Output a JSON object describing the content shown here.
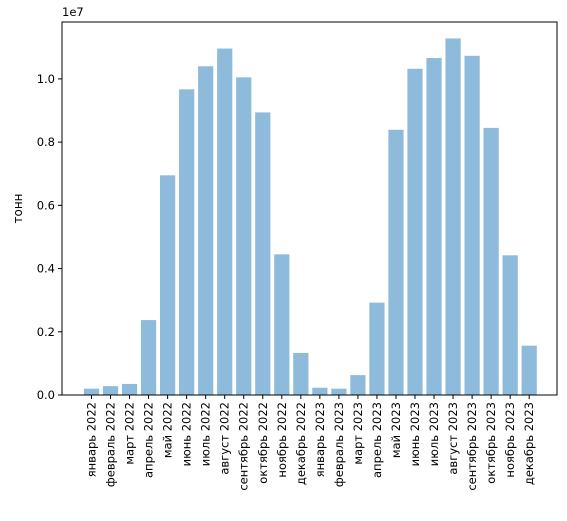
{
  "chart_data": {
    "type": "bar",
    "title": "",
    "xlabel": "",
    "ylabel": "тонн",
    "offset_text": "1e7",
    "ylim": [
      0,
      11800000
    ],
    "yticks": [
      0,
      2000000,
      4000000,
      6000000,
      8000000,
      10000000
    ],
    "ytick_labels": [
      "0.0",
      "0.2",
      "0.4",
      "0.6",
      "0.8",
      "1.0"
    ],
    "bar_color": "#8ebbdb",
    "categories": [
      "январь 2022",
      "февраль 2022",
      "март 2022",
      "апрель 2022",
      "май 2022",
      "июнь 2022",
      "июль 2022",
      "август 2022",
      "сентябрь 2022",
      "октябрь 2022",
      "ноябрь 2022",
      "декабрь 2022",
      "январь 2023",
      "февраль 2023",
      "март 2023",
      "апрель 2023",
      "май 2023",
      "июнь 2023",
      "июль 2023",
      "август 2023",
      "сентябрь 2023",
      "октябрь 2023",
      "ноябрь 2023",
      "декабрь 2023"
    ],
    "values": [
      200000,
      280000,
      350000,
      2370000,
      6950000,
      9670000,
      10400000,
      10960000,
      10050000,
      8940000,
      4450000,
      1330000,
      230000,
      200000,
      630000,
      2920000,
      8390000,
      10320000,
      10660000,
      11280000,
      10730000,
      8450000,
      4420000,
      1560000
    ],
    "grid": false,
    "legend": "none"
  }
}
